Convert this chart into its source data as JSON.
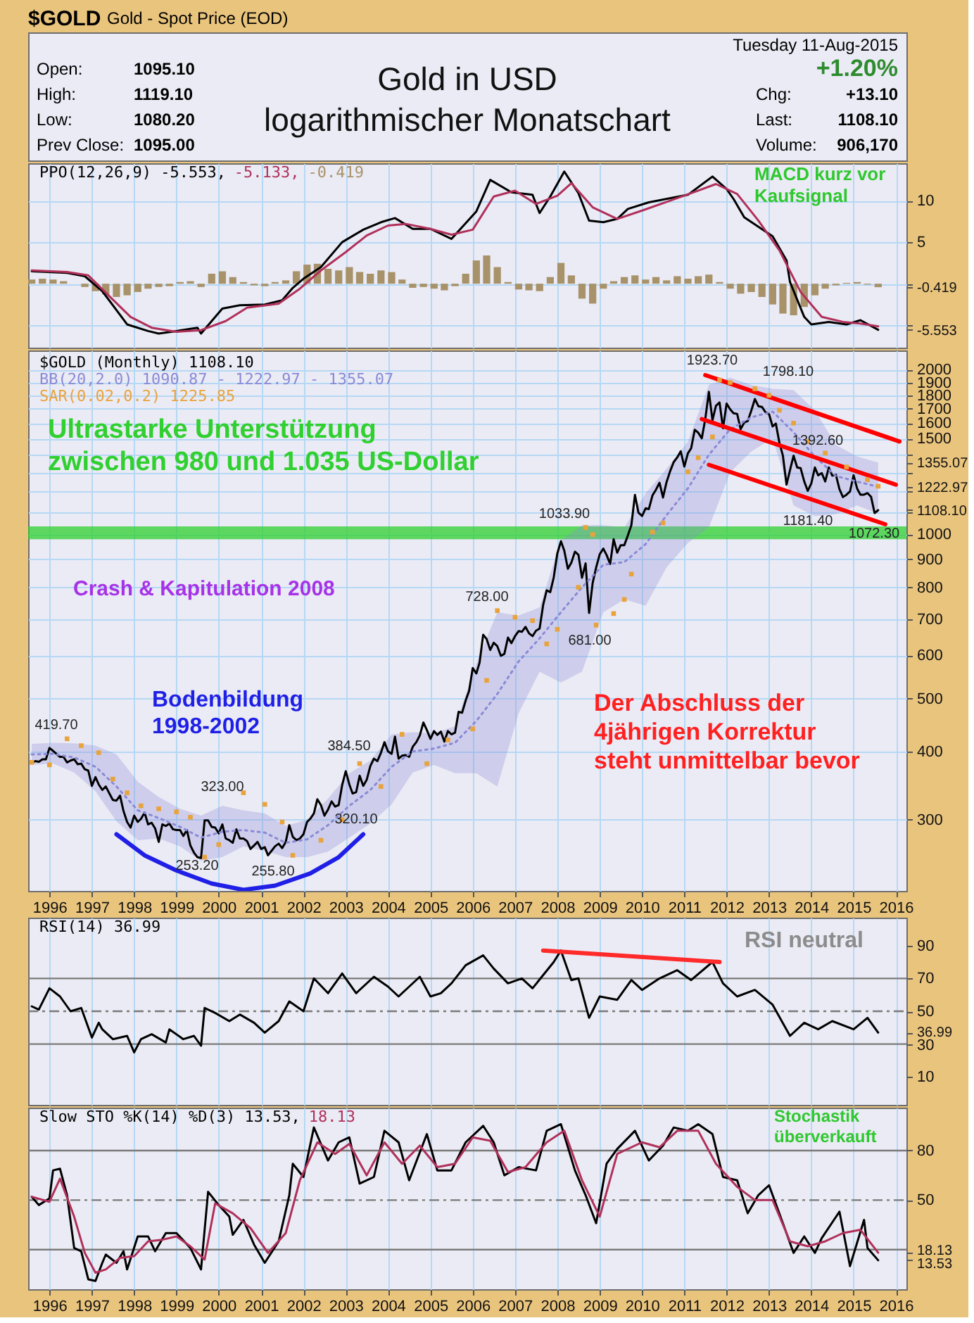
{
  "chart_data": [
    {
      "type": "other",
      "title": "Gold in USD",
      "subtitle": "logarithmischer Monatschart",
      "annotations": [
        "$GOLD",
        "Gold - Spot Price (EOD)",
        "Tuesday 11-Aug-2015",
        "Open:",
        "1095.10",
        "High:",
        "1119.10",
        "Low:",
        "1080.20",
        "Prev Close:",
        "1095.00",
        "+1.20%",
        "Chg:",
        "+13.10",
        "Last:",
        "1108.10",
        "Volume:",
        "906,170"
      ]
    },
    {
      "type": "line",
      "xlim": [
        "1995-07",
        "2016-04"
      ],
      "ylim": [
        -7.7,
        14.5
      ],
      "xticks": [
        "1996",
        "1997",
        "1998",
        "1999",
        "2000",
        "2001",
        "2002",
        "2003",
        "2004",
        "2005",
        "2006",
        "2007",
        "2008",
        "2009",
        "2010",
        "2011",
        "2012",
        "2013",
        "2014",
        "2015",
        "2016"
      ],
      "yticks": [
        {
          "value": -5.553,
          "label": "-5.553"
        },
        {
          "value": -5,
          "label": null
        },
        {
          "value": -0.419,
          "label": "-0.419"
        },
        {
          "value": 0,
          "label": null
        },
        5,
        10
      ],
      "grid": true,
      "legend": "top left",
      "tick_labels": "y",
      "series": [
        {
          "name": "PPO(12,26,9) -5.553,",
          "color": "#000000",
          "x": [
            "1995-08",
            "1996-06",
            "1996-11",
            "1997-04",
            "1997-11",
            "1998-05",
            "1998-08",
            "1999-01",
            "1999-07",
            "1999-08",
            "2000-02",
            "2000-07",
            "2001-02",
            "2001-07",
            "2001-10",
            "2002-01",
            "2002-06",
            "2002-12",
            "2003-06",
            "2003-11",
            "2004-03",
            "2004-08",
            "2005-01",
            "2005-07",
            "2006-02",
            "2006-06",
            "2006-12",
            "2007-06",
            "2007-08",
            "2007-11",
            "2008-03",
            "2008-07",
            "2008-10",
            "2009-02",
            "2009-06",
            "2009-09",
            "2010-03",
            "2011-02",
            "2011-09",
            "2012-01",
            "2012-03",
            "2012-06",
            "2013-02",
            "2013-06",
            "2013-07",
            "2013-11",
            "2014-01",
            "2014-06",
            "2014-11",
            "2015-03",
            "2015-08"
          ],
          "values": [
            1.5,
            1.3,
            0.9,
            -0.9,
            -4.9,
            -5.7,
            -6.0,
            -5.7,
            -5.3,
            -6.0,
            -3.0,
            -2.6,
            -2.5,
            -2.0,
            -0.5,
            0.6,
            2.0,
            5.0,
            6.5,
            7.4,
            7.9,
            6.6,
            6.6,
            5.4,
            8.7,
            12.5,
            11.0,
            10.7,
            8.5,
            10.5,
            13.5,
            10.9,
            7.6,
            7.4,
            7.8,
            9.0,
            9.8,
            10.7,
            12.9,
            11.4,
            10.2,
            8.0,
            5.7,
            2.8,
            0.2,
            -4.0,
            -4.9,
            -4.6,
            -4.9,
            -4.4,
            -5.553
          ]
        },
        {
          "name": "-5.133,",
          "color": "#b0305a",
          "x": [
            "1995-08",
            "1996-06",
            "1996-12",
            "1997-06",
            "1997-12",
            "1998-06",
            "1999-01",
            "1999-08",
            "2000-03",
            "2000-09",
            "2001-06",
            "2001-12",
            "2002-06",
            "2003-01",
            "2003-07",
            "2004-01",
            "2004-06",
            "2005-01",
            "2005-07",
            "2006-01",
            "2006-07",
            "2007-01",
            "2007-07",
            "2008-01",
            "2008-05",
            "2008-11",
            "2009-06",
            "2010-01",
            "2010-09",
            "2011-05",
            "2011-10",
            "2012-04",
            "2012-10",
            "2013-04",
            "2013-10",
            "2014-04",
            "2014-10",
            "2015-03",
            "2015-08"
          ],
          "values": [
            1.6,
            1.4,
            1.0,
            -1.5,
            -4.0,
            -5.3,
            -5.8,
            -5.6,
            -4.5,
            -2.9,
            -2.4,
            -0.6,
            1.6,
            3.8,
            5.8,
            7.0,
            7.2,
            6.6,
            5.9,
            6.5,
            10.5,
            11.2,
            9.6,
            10.6,
            12.1,
            9.2,
            7.8,
            8.8,
            10.0,
            11.2,
            12.0,
            10.8,
            7.6,
            4.0,
            -1.0,
            -4.0,
            -4.6,
            -4.8,
            -5.133
          ]
        },
        {
          "name": "-0.419",
          "type": "bar",
          "color": "#a8926a",
          "x": [
            "1995-08",
            "1995-11",
            "1996-02",
            "1996-05",
            "1996-08",
            "1996-11",
            "1997-02",
            "1997-05",
            "1997-08",
            "1997-11",
            "1998-02",
            "1998-05",
            "1998-08",
            "1998-11",
            "1999-02",
            "1999-05",
            "1999-08",
            "1999-11",
            "2000-02",
            "2000-05",
            "2000-08",
            "2000-11",
            "2001-02",
            "2001-05",
            "2001-08",
            "2001-11",
            "2002-02",
            "2002-05",
            "2002-08",
            "2002-11",
            "2003-02",
            "2003-05",
            "2003-08",
            "2003-11",
            "2004-02",
            "2004-05",
            "2004-08",
            "2004-11",
            "2005-02",
            "2005-05",
            "2005-08",
            "2005-11",
            "2006-02",
            "2006-05",
            "2006-08",
            "2006-11",
            "2007-02",
            "2007-05",
            "2007-08",
            "2007-11",
            "2008-02",
            "2008-05",
            "2008-08",
            "2008-11",
            "2009-02",
            "2009-05",
            "2009-08",
            "2009-11",
            "2010-02",
            "2010-05",
            "2010-08",
            "2010-11",
            "2011-02",
            "2011-05",
            "2011-08",
            "2011-11",
            "2012-02",
            "2012-05",
            "2012-08",
            "2012-11",
            "2013-02",
            "2013-05",
            "2013-08",
            "2013-11",
            "2014-02",
            "2014-05",
            "2014-08",
            "2014-11",
            "2015-02",
            "2015-05",
            "2015-08"
          ],
          "values": [
            0.5,
            0.6,
            0.5,
            0.3,
            0.0,
            -0.4,
            -0.9,
            -1.3,
            -1.6,
            -1.4,
            -1.0,
            -0.6,
            -0.4,
            -0.3,
            0.2,
            0.3,
            -0.4,
            1.2,
            1.5,
            0.8,
            0.2,
            -0.2,
            -0.3,
            0.2,
            0.4,
            1.5,
            2.3,
            2.4,
            1.8,
            1.6,
            2.0,
            1.4,
            1.2,
            1.6,
            1.4,
            0.5,
            -0.5,
            -0.4,
            -0.6,
            -0.8,
            -0.3,
            1.2,
            2.8,
            3.4,
            2.0,
            0.2,
            -0.7,
            -0.8,
            -0.9,
            0.8,
            2.5,
            1.0,
            -1.8,
            -2.4,
            -0.6,
            0.3,
            0.8,
            1.0,
            0.5,
            0.8,
            0.4,
            0.9,
            0.6,
            0.9,
            1.1,
            0.2,
            -0.6,
            -1.2,
            -1.0,
            -1.6,
            -2.5,
            -3.6,
            -3.8,
            -2.8,
            -1.4,
            -0.6,
            -0.2,
            0.1,
            0.2,
            -0.1,
            -0.419
          ]
        }
      ],
      "annotations": [
        "MACD kurz vor Kaufsignal"
      ]
    },
    {
      "type": "line",
      "log": true,
      "xlim": [
        "1995-07",
        "2016-04"
      ],
      "ylim": [
        222,
        2175
      ],
      "xticks": [
        "1996",
        "1997",
        "1998",
        "1999",
        "2000",
        "2001",
        "2002",
        "2003",
        "2004",
        "2005",
        "2006",
        "2007",
        "2008",
        "2009",
        "2010",
        "2011",
        "2012",
        "2013",
        "2014",
        "2015",
        "2016"
      ],
      "yticks": [
        300,
        400,
        500,
        600,
        700,
        800,
        900,
        1000,
        {
          "value": 1100,
          "label": null
        },
        {
          "value": 1108.1,
          "label": "1108.10"
        },
        {
          "value": 1200,
          "label": null
        },
        {
          "value": 1222.97,
          "label": "1222.97"
        },
        {
          "value": 1300,
          "label": null
        },
        {
          "value": 1355.07,
          "label": "1355.07"
        },
        {
          "value": 1400,
          "label": null
        },
        1500,
        1600,
        1700,
        1800,
        1900,
        2000
      ],
      "grid": true,
      "legend": "top left",
      "x": [
        "1995-08",
        "1995-09",
        "1995-10",
        "1995-11",
        "1995-12",
        "1996-01",
        "1996-02",
        "1996-03",
        "1996-04",
        "1996-05",
        "1996-06",
        "1996-07",
        "1996-08",
        "1996-09",
        "1996-10",
        "1996-11",
        "1996-12",
        "1997-01",
        "1997-02",
        "1997-03",
        "1997-04",
        "1997-05",
        "1997-06",
        "1997-07",
        "1997-08",
        "1997-09",
        "1997-10",
        "1997-11",
        "1997-12",
        "1998-01",
        "1998-02",
        "1998-03",
        "1998-04",
        "1998-05",
        "1998-06",
        "1998-07",
        "1998-08",
        "1998-09",
        "1998-10",
        "1998-11",
        "1998-12",
        "1999-01",
        "1999-02",
        "1999-03",
        "1999-04",
        "1999-05",
        "1999-06",
        "1999-07",
        "1999-08",
        "1999-09",
        "1999-10",
        "1999-11",
        "1999-12",
        "2000-01",
        "2000-02",
        "2000-03",
        "2000-04",
        "2000-05",
        "2000-06",
        "2000-07",
        "2000-08",
        "2000-09",
        "2000-10",
        "2000-11",
        "2000-12",
        "2001-01",
        "2001-02",
        "2001-03",
        "2001-04",
        "2001-05",
        "2001-06",
        "2001-07",
        "2001-08",
        "2001-09",
        "2001-10",
        "2001-11",
        "2001-12",
        "2002-01",
        "2002-02",
        "2002-03",
        "2002-04",
        "2002-05",
        "2002-06",
        "2002-07",
        "2002-08",
        "2002-09",
        "2002-10",
        "2002-11",
        "2002-12",
        "2003-01",
        "2003-02",
        "2003-03",
        "2003-04",
        "2003-05",
        "2003-06",
        "2003-07",
        "2003-08",
        "2003-09",
        "2003-10",
        "2003-11",
        "2003-12",
        "2004-01",
        "2004-02",
        "2004-03",
        "2004-04",
        "2004-05",
        "2004-06",
        "2004-07",
        "2004-08",
        "2004-09",
        "2004-10",
        "2004-11",
        "2004-12",
        "2005-01",
        "2005-02",
        "2005-03",
        "2005-04",
        "2005-05",
        "2005-06",
        "2005-07",
        "2005-08",
        "2005-09",
        "2005-10",
        "2005-11",
        "2005-12",
        "2006-01",
        "2006-02",
        "2006-03",
        "2006-04",
        "2006-05",
        "2006-06",
        "2006-07",
        "2006-08",
        "2006-09",
        "2006-10",
        "2006-11",
        "2006-12",
        "2007-01",
        "2007-02",
        "2007-03",
        "2007-04",
        "2007-05",
        "2007-06",
        "2007-07",
        "2007-08",
        "2007-09",
        "2007-10",
        "2007-11",
        "2007-12",
        "2008-01",
        "2008-02",
        "2008-03",
        "2008-04",
        "2008-05",
        "2008-06",
        "2008-07",
        "2008-08",
        "2008-09",
        "2008-10",
        "2008-11",
        "2008-12",
        "2009-01",
        "2009-02",
        "2009-03",
        "2009-04",
        "2009-05",
        "2009-06",
        "2009-07",
        "2009-08",
        "2009-09",
        "2009-10",
        "2009-11",
        "2009-12",
        "2010-01",
        "2010-02",
        "2010-03",
        "2010-04",
        "2010-05",
        "2010-06",
        "2010-07",
        "2010-08",
        "2010-09",
        "2010-10",
        "2010-11",
        "2010-12",
        "2011-01",
        "2011-02",
        "2011-03",
        "2011-04",
        "2011-05",
        "2011-06",
        "2011-07",
        "2011-08",
        "2011-09",
        "2011-10",
        "2011-11",
        "2011-12",
        "2012-01",
        "2012-02",
        "2012-03",
        "2012-04",
        "2012-05",
        "2012-06",
        "2012-07",
        "2012-08",
        "2012-09",
        "2012-10",
        "2012-11",
        "2012-12",
        "2013-01",
        "2013-02",
        "2013-03",
        "2013-04",
        "2013-05",
        "2013-06",
        "2013-07",
        "2013-08",
        "2013-09",
        "2013-10",
        "2013-11",
        "2013-12",
        "2014-01",
        "2014-02",
        "2014-03",
        "2014-04",
        "2014-05",
        "2014-06",
        "2014-07",
        "2014-08",
        "2014-09",
        "2014-10",
        "2014-11",
        "2014-12",
        "2015-01",
        "2015-02",
        "2015-03",
        "2015-04",
        "2015-05",
        "2015-06",
        "2015-07",
        "2015-08"
      ],
      "bands": [
        {
          "axis": "y",
          "from": 980,
          "to": 1035,
          "label": "Ultrastarke Unterstützung zwischen 980 und 1.035 US-Dollar",
          "color": "#2fd02f"
        }
      ],
      "series": [
        {
          "name": "$GOLD (Monthly) 1108.10",
          "color": "#000000",
          "values": [
            382,
            384,
            383,
            387,
            387,
            406,
            401,
            396,
            391,
            391,
            382,
            385,
            387,
            379,
            380,
            371,
            369,
            346,
            359,
            348,
            340,
            345,
            335,
            326,
            325,
            332,
            311,
            297,
            290,
            305,
            297,
            301,
            309,
            294,
            296,
            289,
            273,
            294,
            292,
            295,
            288,
            287,
            287,
            280,
            287,
            269,
            261,
            256,
            255,
            299,
            299,
            291,
            290,
            283,
            294,
            277,
            275,
            272,
            288,
            277,
            277,
            274,
            265,
            269,
            273,
            265,
            267,
            258,
            263,
            268,
            271,
            266,
            273,
            293,
            279,
            275,
            277,
            282,
            297,
            301,
            308,
            327,
            319,
            305,
            313,
            324,
            317,
            319,
            347,
            368,
            348,
            335,
            337,
            361,
            346,
            355,
            376,
            388,
            384,
            398,
            416,
            400,
            396,
            426,
            388,
            393,
            394,
            391,
            408,
            416,
            428,
            452,
            438,
            422,
            436,
            429,
            435,
            417,
            436,
            430,
            433,
            473,
            471,
            496,
            517,
            569,
            556,
            582,
            655,
            643,
            614,
            633,
            624,
            599,
            604,
            647,
            632,
            651,
            665,
            663,
            677,
            659,
            651,
            666,
            672,
            743,
            790,
            784,
            834,
            923,
            972,
            934,
            865,
            888,
            930,
            918,
            833,
            885,
            718,
            815,
            870,
            920,
            942,
            917,
            883,
            980,
            926,
            956,
            956,
            996,
            1040,
            1182,
            1097,
            1081,
            1117,
            1113,
            1179,
            1208,
            1244,
            1169,
            1248,
            1307,
            1357,
            1385,
            1421,
            1332,
            1409,
            1439,
            1556,
            1537,
            1501,
            1629,
            1826,
            1620,
            1722,
            1746,
            1566,
            1738,
            1696,
            1668,
            1664,
            1560,
            1604,
            1614,
            1687,
            1772,
            1719,
            1714,
            1676,
            1663,
            1578,
            1597,
            1472,
            1394,
            1234,
            1312,
            1395,
            1327,
            1323,
            1251,
            1202,
            1241,
            1327,
            1284,
            1296,
            1251,
            1327,
            1282,
            1287,
            1211,
            1171,
            1183,
            1199,
            1284,
            1213,
            1183,
            1183,
            1191,
            1172,
            1095,
            1108.1
          ]
        },
        {
          "name": "BB(20,2.0) 1090.87 - 1222.97 - 1355.07",
          "color": "#8a8ad6",
          "line_style": "dotted",
          "x": [
            "1995-08",
            "1996-02",
            "1996-08",
            "1997-02",
            "1997-08",
            "1998-02",
            "1998-08",
            "1999-02",
            "1999-08",
            "2000-02",
            "2000-08",
            "2001-02",
            "2001-08",
            "2002-02",
            "2002-08",
            "2003-02",
            "2003-08",
            "2004-02",
            "2004-08",
            "2005-02",
            "2005-08",
            "2006-02",
            "2006-08",
            "2007-02",
            "2007-08",
            "2008-02",
            "2008-08",
            "2009-02",
            "2009-08",
            "2010-02",
            "2010-08",
            "2011-02",
            "2011-08",
            "2012-02",
            "2012-08",
            "2013-02",
            "2013-08",
            "2014-02",
            "2014-08",
            "2015-02",
            "2015-08"
          ],
          "values": [
            395,
            396,
            390,
            375,
            345,
            312,
            302,
            291,
            278,
            285,
            287,
            284,
            272,
            276,
            293,
            318,
            340,
            375,
            400,
            405,
            415,
            455,
            510,
            585,
            645,
            720,
            800,
            880,
            890,
            960,
            1085,
            1215,
            1400,
            1560,
            1640,
            1680,
            1540,
            1390,
            1280,
            1250,
            1222.97
          ],
          "lower": [
            378,
            380,
            366,
            338,
            298,
            275,
            277,
            268,
            252,
            256,
            268,
            263,
            256,
            256,
            262,
            278,
            295,
            320,
            366,
            378,
            365,
            365,
            345,
            470,
            560,
            535,
            560,
            720,
            760,
            740,
            870,
            965,
            1030,
            1300,
            1420,
            1500,
            1130,
            1080,
            1090,
            1130,
            1090.87
          ],
          "upper": [
            413,
            415,
            414,
            410,
            395,
            352,
            330,
            314,
            305,
            318,
            312,
            308,
            292,
            300,
            328,
            365,
            385,
            430,
            434,
            432,
            445,
            580,
            720,
            710,
            735,
            975,
            1040,
            1040,
            1030,
            1190,
            1320,
            1480,
            1880,
            1940,
            1880,
            1850,
            1840,
            1690,
            1460,
            1390,
            1355.07
          ]
        },
        {
          "name": "SAR(0.02,0.2) 1225.85",
          "type": "scatter",
          "marker": "square",
          "color": "#e8a33c",
          "x": [
            "1995-08",
            "1996-01",
            "1996-06",
            "1996-10",
            "1997-03",
            "1997-07",
            "1997-11",
            "1998-03",
            "1998-08",
            "1999-01",
            "1999-05",
            "1999-09",
            "2000-01",
            "2000-08",
            "2001-02",
            "2001-07",
            "2001-10",
            "2002-06",
            "2002-12",
            "2003-05",
            "2003-11",
            "2004-05",
            "2004-12",
            "2005-06",
            "2006-01",
            "2006-05",
            "2006-08",
            "2007-01",
            "2007-06",
            "2007-10",
            "2008-01",
            "2008-07",
            "2008-09",
            "2008-11",
            "2008-12",
            "2009-05",
            "2009-08",
            "2009-10",
            "2010-04",
            "2010-07",
            "2011-02",
            "2011-05",
            "2011-09",
            "2011-11",
            "2012-02",
            "2012-09",
            "2013-01",
            "2013-04",
            "2013-08",
            "2013-12",
            "2014-05",
            "2014-11",
            "2015-05",
            "2015-08"
          ],
          "values": [
            382,
            378,
            422,
            410,
            398,
            356,
            336,
            318,
            314,
            310,
            303,
            256,
            270,
            336,
            320,
            297,
            258,
            275,
            300,
            380,
            345,
            430,
            380,
            420,
            440,
            540,
            725,
            705,
            695,
            630,
            670,
            800,
            1030,
            1000,
            682,
            716,
            760,
            846,
            1010,
            1050,
            1303,
            1383,
            1510,
            1920,
            1900,
            1850,
            1800,
            1690,
            1600,
            1480,
            1410,
            1330,
            1260,
            1225.85
          ]
        },
        {
          "color": "#ff0000",
          "x": [
            "2011-07",
            "2016-02"
          ],
          "values": [
            1960,
            1481
          ]
        },
        {
          "color": "#ff0000",
          "x": [
            "2011-06",
            "2016-01"
          ],
          "values": [
            1628,
            1234
          ]
        },
        {
          "color": "#ff0000",
          "x": [
            "2011-08",
            "2015-10"
          ],
          "values": [
            1342,
            1044
          ]
        },
        {
          "color": "#1f1fe6",
          "x": [
            "1997-08",
            "1998-04",
            "1999-01",
            "1999-11",
            "2000-08",
            "2001-05",
            "2002-03",
            "2002-11",
            "2003-06"
          ],
          "values": [
            282,
            258,
            242,
            229,
            223,
            227,
            239,
            256,
            282
          ]
        }
      ],
      "annotations": [
        "Crash & Kapitulation 2008",
        "Bodenbildung 1998-2002",
        "Der Abschluss der 4jährigen Korrektur steht unmittelbar bevor",
        "419.70",
        "323.00",
        "253.20",
        "255.80",
        "384.50",
        "320.10",
        "728.00",
        "1033.90",
        "681.00",
        "1923.70",
        "1798.10",
        "1392.60",
        "1181.40",
        "1072.30"
      ]
    },
    {
      "type": "line",
      "xlim": [
        "1995-07",
        "2016-04"
      ],
      "ylim": [
        -7,
        107
      ],
      "xticks": [
        "1996",
        "1997",
        "1998",
        "1999",
        "2000",
        "2001",
        "2002",
        "2003",
        "2004",
        "2005",
        "2006",
        "2007",
        "2008",
        "2009",
        "2010",
        "2011",
        "2012",
        "2013",
        "2014",
        "2015",
        "2016"
      ],
      "yticks": [
        10,
        30,
        {
          "value": 36.99,
          "label": "36.99"
        },
        50,
        70,
        90
      ],
      "grid": "x",
      "legend": "top left",
      "tick_labels": "y",
      "ref_lines": [
        {
          "axis": "y",
          "value": 70,
          "color": "#7a7a7a"
        },
        {
          "axis": "y",
          "value": 30,
          "color": "#7a7a7a"
        },
        {
          "axis": "y",
          "value": 50,
          "color": "#7a7a7a",
          "line_style": "dashed"
        }
      ],
      "series": [
        {
          "name": "RSI(14) 36.99",
          "color": "#000000",
          "x": [
            "1995-08",
            "1995-10",
            "1996-01",
            "1996-04",
            "1996-07",
            "1996-10",
            "1997-01",
            "1997-03",
            "1997-04",
            "1997-07",
            "1997-11",
            "1998-01",
            "1998-03",
            "1998-06",
            "1998-10",
            "1998-11",
            "1999-03",
            "1999-06",
            "1999-08",
            "1999-09",
            "1999-12",
            "2000-04",
            "2000-07",
            "2000-11",
            "2001-02",
            "2001-06",
            "2001-09",
            "2002-01",
            "2002-04",
            "2002-08",
            "2002-12",
            "2003-04",
            "2003-09",
            "2004-01",
            "2004-04",
            "2004-10",
            "2005-01",
            "2005-04",
            "2005-07",
            "2005-11",
            "2006-04",
            "2006-07",
            "2006-11",
            "2007-03",
            "2007-06",
            "2007-12",
            "2008-02",
            "2008-05",
            "2008-07",
            "2008-10",
            "2009-01",
            "2009-06",
            "2009-10",
            "2010-01",
            "2010-06",
            "2010-11",
            "2011-03",
            "2011-09",
            "2011-12",
            "2012-04",
            "2012-09",
            "2013-02",
            "2013-07",
            "2013-11",
            "2014-03",
            "2014-07",
            "2015-01",
            "2015-05",
            "2015-08"
          ],
          "values": [
            53,
            51,
            64,
            59,
            50,
            52,
            34,
            43,
            39,
            33,
            35,
            25,
            33,
            36,
            31,
            39,
            33,
            35,
            29,
            52,
            49,
            44,
            48,
            43,
            37,
            44,
            56,
            50,
            70,
            61,
            73,
            61,
            71,
            65,
            59,
            71,
            59,
            61,
            67,
            78,
            84,
            76,
            67,
            70,
            64,
            80,
            87,
            69,
            70,
            46,
            59,
            57,
            69,
            63,
            70,
            75,
            69,
            80,
            67,
            59,
            63,
            54,
            35,
            43,
            39,
            44,
            39,
            46,
            36.99
          ]
        },
        {
          "color": "#ff2a2a",
          "x": [
            "2007-09",
            "2011-11"
          ],
          "values": [
            87,
            80
          ]
        }
      ],
      "annotations": [
        "RSI neutral"
      ]
    },
    {
      "type": "line",
      "xlim": [
        "1995-07",
        "2016-04"
      ],
      "ylim": [
        -4,
        106
      ],
      "xticks": [
        "1996",
        "1997",
        "1998",
        "1999",
        "2000",
        "2001",
        "2002",
        "2003",
        "2004",
        "2005",
        "2006",
        "2007",
        "2008",
        "2009",
        "2010",
        "2011",
        "2012",
        "2013",
        "2014",
        "2015",
        "2016"
      ],
      "yticks": [
        {
          "value": 13.53,
          "label": "13.53"
        },
        {
          "value": 18.13,
          "label": "18.13"
        },
        50,
        80
      ],
      "grid": "x",
      "legend": "top left",
      "ref_lines": [
        {
          "axis": "y",
          "value": 80,
          "color": "#7a7a7a"
        },
        {
          "axis": "y",
          "value": 20,
          "color": "#7a7a7a"
        },
        {
          "axis": "y",
          "value": 50,
          "color": "#7a7a7a",
          "line_style": "dashed"
        }
      ],
      "series": [
        {
          "name": "Slow STO %K(14) %D(3) 13.53,",
          "color": "#000000",
          "x": [
            "1995-08",
            "1995-10",
            "1996-01",
            "1996-02",
            "1996-04",
            "1996-06",
            "1996-08",
            "1996-10",
            "1996-12",
            "1997-02",
            "1997-04",
            "1997-05",
            "1997-08",
            "1997-10",
            "1997-11",
            "1998-02",
            "1998-05",
            "1998-07",
            "1998-10",
            "1999-01",
            "1999-05",
            "1999-08",
            "1999-10",
            "2000-01",
            "2000-04",
            "2000-05",
            "2000-08",
            "2000-11",
            "2001-02",
            "2001-06",
            "2001-09",
            "2001-10",
            "2002-01",
            "2002-04",
            "2002-08",
            "2002-11",
            "2003-02",
            "2003-05",
            "2003-09",
            "2003-12",
            "2004-04",
            "2004-07",
            "2004-12",
            "2005-03",
            "2005-07",
            "2005-11",
            "2006-04",
            "2006-07",
            "2006-10",
            "2007-02",
            "2007-07",
            "2007-10",
            "2008-02",
            "2008-06",
            "2008-09",
            "2008-12",
            "2009-03",
            "2009-06",
            "2009-11",
            "2010-03",
            "2010-07",
            "2010-10",
            "2011-02",
            "2011-05",
            "2011-09",
            "2011-12",
            "2012-04",
            "2012-07",
            "2012-10",
            "2013-01",
            "2013-05",
            "2013-08",
            "2013-11",
            "2014-02",
            "2014-04",
            "2014-09",
            "2014-12",
            "2015-04",
            "2015-05",
            "2015-08"
          ],
          "values": [
            52,
            47,
            51,
            68,
            69,
            53,
            21,
            19,
            2,
            1,
            12,
            17,
            12,
            19,
            8,
            28,
            28,
            19,
            30,
            30,
            21,
            8,
            55,
            47,
            40,
            29,
            38,
            23,
            12,
            25,
            53,
            72,
            64,
            94,
            74,
            85,
            88,
            60,
            64,
            92,
            85,
            62,
            90,
            68,
            68,
            85,
            95,
            85,
            65,
            70,
            68,
            92,
            96,
            68,
            53,
            36,
            72,
            81,
            92,
            74,
            83,
            94,
            92,
            96,
            90,
            64,
            62,
            42,
            53,
            59,
            36,
            18,
            28,
            18,
            27,
            43,
            10,
            38,
            21,
            13.53
          ]
        },
        {
          "name": "18.13",
          "color": "#b0305a",
          "x": [
            "1995-08",
            "1996-01",
            "1996-04",
            "1996-08",
            "1996-11",
            "1997-02",
            "1997-05",
            "1997-09",
            "1998-01",
            "1998-05",
            "1998-09",
            "1999-01",
            "1999-05",
            "1999-09",
            "1999-12",
            "2000-05",
            "2000-10",
            "2001-03",
            "2001-08",
            "2001-12",
            "2002-05",
            "2002-10",
            "2003-02",
            "2003-07",
            "2003-12",
            "2004-05",
            "2004-10",
            "2005-03",
            "2005-08",
            "2006-01",
            "2006-06",
            "2006-11",
            "2007-04",
            "2007-10",
            "2008-03",
            "2008-08",
            "2009-01",
            "2009-06",
            "2010-01",
            "2010-06",
            "2010-11",
            "2011-05",
            "2011-10",
            "2012-04",
            "2012-09",
            "2013-02",
            "2013-07",
            "2013-12",
            "2014-05",
            "2014-10",
            "2015-03",
            "2015-08"
          ],
          "values": [
            52,
            49,
            63,
            40,
            18,
            6,
            8,
            15,
            16,
            25,
            26,
            28,
            22,
            14,
            48,
            42,
            33,
            18,
            30,
            62,
            85,
            78,
            84,
            65,
            85,
            72,
            83,
            70,
            72,
            88,
            86,
            67,
            70,
            85,
            92,
            62,
            40,
            78,
            85,
            82,
            92,
            92,
            72,
            58,
            50,
            50,
            25,
            22,
            25,
            30,
            32,
            18.13
          ]
        }
      ],
      "annotations": [
        "Stochastik überverkauft"
      ]
    }
  ]
}
